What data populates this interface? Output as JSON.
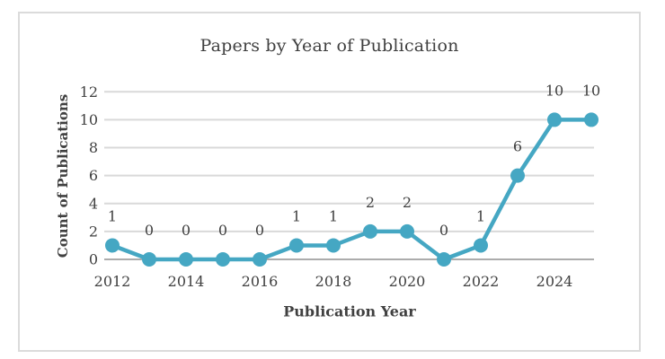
{
  "chart_data": {
    "type": "line",
    "title": "Papers by Year of Publication",
    "xlabel": "Publication Year",
    "ylabel": "Count of Publications",
    "x": [
      2012,
      2013,
      2014,
      2015,
      2016,
      2017,
      2018,
      2019,
      2020,
      2021,
      2022,
      2023,
      2024,
      2025
    ],
    "values": [
      1,
      0,
      0,
      0,
      0,
      1,
      1,
      2,
      2,
      0,
      1,
      6,
      10,
      10
    ],
    "data_labels": [
      "1",
      "0",
      "0",
      "0",
      "0",
      "1",
      "1",
      "2",
      "2",
      "0",
      "1",
      "6",
      "10",
      "10"
    ],
    "x_tick_labels": [
      "2012",
      "2014",
      "2016",
      "2018",
      "2020",
      "2022",
      "2024"
    ],
    "x_tick_every": 2,
    "y_ticks": [
      0,
      2,
      4,
      6,
      8,
      10,
      12
    ],
    "ylim": [
      0,
      12
    ],
    "grid": true,
    "legend": false,
    "marker": "circle",
    "colors": {
      "series": "#45A7C3",
      "gridline": "#D9D9D9",
      "axis_line": "#ACACAC",
      "text": "#404040",
      "frame_border": "#DBDBDB"
    }
  }
}
